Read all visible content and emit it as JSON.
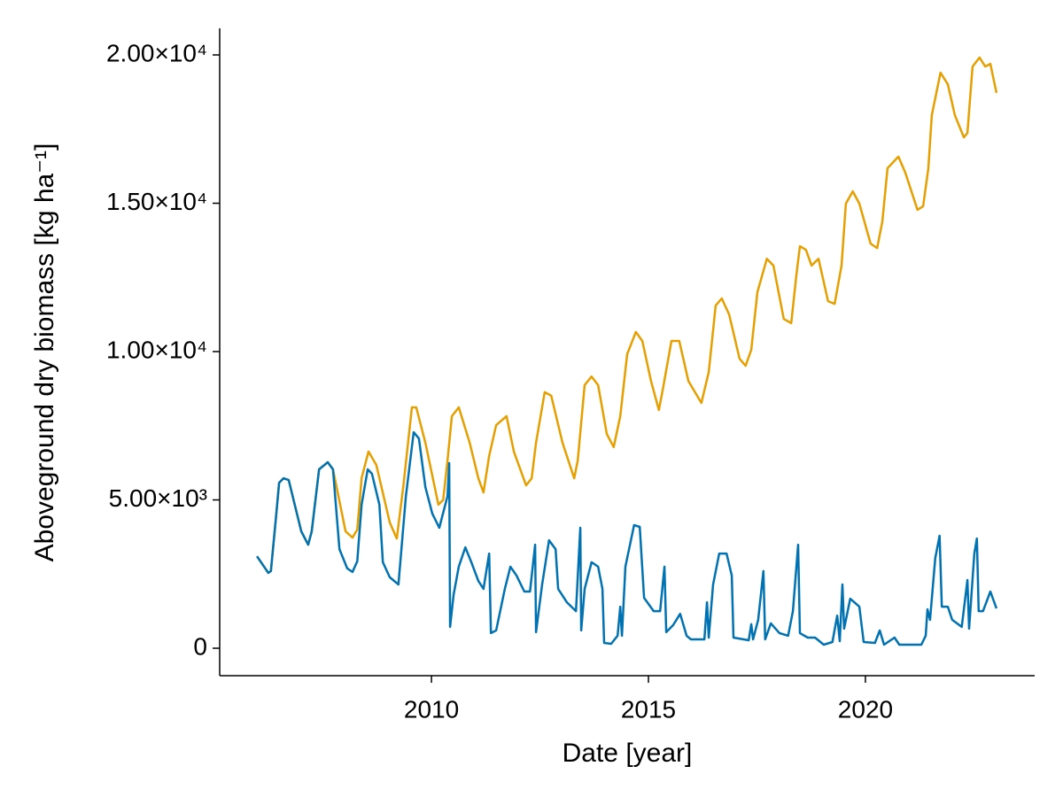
{
  "chart_data": {
    "type": "line",
    "xlabel": "Date [year]",
    "ylabel": "Aboveground dry biomass [kg ha⁻¹]",
    "xlim": [
      2005.12,
      2023.9
    ],
    "xticks": [
      2010,
      2015,
      2020
    ],
    "ylim": [
      -925,
      20896
    ],
    "yticks": [
      0,
      {
        "value": 5000,
        "label": "5.00×10³"
      },
      {
        "value": 10000,
        "label": "1.00×10⁴"
      },
      {
        "value": 15000,
        "label": "1.50×10⁴"
      },
      {
        "value": 20000,
        "label": "2.00×10⁴"
      }
    ],
    "grid": false,
    "series": [
      {
        "color": "#e69f00",
        "x": [
          2005.98,
          2006.24,
          2006.3,
          2006.41,
          2006.49,
          2006.59,
          2006.71,
          2007.0,
          2007.16,
          2007.24,
          2007.41,
          2007.61,
          2007.73,
          2008.02,
          2008.18,
          2008.29,
          2008.39,
          2008.55,
          2008.73,
          2009.04,
          2009.2,
          2009.35,
          2009.55,
          2009.65,
          2009.86,
          2010.16,
          2010.27,
          2010.37,
          2010.47,
          2010.63,
          2010.88,
          2011.08,
          2011.2,
          2011.33,
          2011.49,
          2011.73,
          2011.9,
          2012.18,
          2012.31,
          2012.41,
          2012.61,
          2012.76,
          2013.02,
          2013.29,
          2013.37,
          2013.53,
          2013.69,
          2013.84,
          2014.04,
          2014.2,
          2014.35,
          2014.51,
          2014.71,
          2014.86,
          2015.06,
          2015.24,
          2015.33,
          2015.53,
          2015.71,
          2015.92,
          2016.22,
          2016.39,
          2016.55,
          2016.69,
          2016.86,
          2017.1,
          2017.24,
          2017.37,
          2017.51,
          2017.73,
          2017.88,
          2018.12,
          2018.29,
          2018.41,
          2018.49,
          2018.63,
          2018.76,
          2018.92,
          2019.14,
          2019.29,
          2019.45,
          2019.55,
          2019.71,
          2019.86,
          2020.12,
          2020.27,
          2020.39,
          2020.51,
          2020.76,
          2020.92,
          2021.2,
          2021.33,
          2021.45,
          2021.53,
          2021.73,
          2021.9,
          2022.06,
          2022.27,
          2022.35,
          2022.47,
          2022.63,
          2022.76,
          2022.88,
          2023.02
        ],
        "values": [
          3100,
          2540,
          2600,
          4300,
          5580,
          5730,
          5670,
          3940,
          3490,
          3940,
          6030,
          6270,
          6030,
          3940,
          3730,
          4000,
          5730,
          6630,
          6180,
          4240,
          3700,
          5430,
          8120,
          8120,
          6930,
          4840,
          5000,
          6330,
          7820,
          8120,
          6930,
          5730,
          5250,
          6480,
          7520,
          7820,
          6630,
          5490,
          5730,
          6930,
          8630,
          8510,
          6930,
          5730,
          6330,
          8870,
          9160,
          8870,
          7220,
          6780,
          7820,
          9910,
          10660,
          10360,
          9010,
          8030,
          8720,
          10360,
          10360,
          9010,
          8270,
          9310,
          11550,
          11790,
          11250,
          9760,
          9520,
          10060,
          12000,
          13130,
          12900,
          11100,
          10960,
          12600,
          13550,
          13430,
          12900,
          13130,
          11700,
          11610,
          12900,
          14990,
          15400,
          14990,
          13640,
          13490,
          14390,
          16180,
          16570,
          16030,
          14780,
          14900,
          16180,
          17970,
          19400,
          19010,
          17970,
          17220,
          17370,
          19610,
          19910,
          19610,
          19700,
          18720
        ]
      },
      {
        "color": "#0072b2",
        "x": [
          2005.98,
          2006.24,
          2006.3,
          2006.41,
          2006.49,
          2006.59,
          2006.71,
          2007.0,
          2007.16,
          2007.24,
          2007.41,
          2007.61,
          2007.73,
          2007.88,
          2008.06,
          2008.18,
          2008.29,
          2008.39,
          2008.53,
          2008.63,
          2008.8,
          2008.88,
          2009.04,
          2009.24,
          2009.41,
          2009.59,
          2009.71,
          2009.86,
          2010.02,
          2010.18,
          2010.37,
          2010.41,
          2010.43,
          2010.51,
          2010.63,
          2010.78,
          2010.92,
          2011.08,
          2011.2,
          2011.33,
          2011.37,
          2011.49,
          2011.69,
          2011.82,
          2011.96,
          2012.14,
          2012.27,
          2012.39,
          2012.41,
          2012.55,
          2012.71,
          2012.86,
          2012.92,
          2013.12,
          2013.33,
          2013.43,
          2013.45,
          2013.53,
          2013.69,
          2013.84,
          2013.94,
          2013.98,
          2014.14,
          2014.29,
          2014.35,
          2014.39,
          2014.47,
          2014.67,
          2014.8,
          2014.9,
          2015.12,
          2015.27,
          2015.37,
          2015.41,
          2015.57,
          2015.73,
          2015.88,
          2015.98,
          2016.29,
          2016.35,
          2016.39,
          2016.49,
          2016.63,
          2016.8,
          2016.92,
          2016.96,
          2017.31,
          2017.37,
          2017.41,
          2017.53,
          2017.65,
          2017.69,
          2017.82,
          2018.02,
          2018.22,
          2018.33,
          2018.45,
          2018.49,
          2018.67,
          2018.84,
          2019.04,
          2019.24,
          2019.35,
          2019.41,
          2019.47,
          2019.51,
          2019.65,
          2019.86,
          2019.96,
          2020.22,
          2020.33,
          2020.43,
          2020.67,
          2020.78,
          2020.88,
          2021.29,
          2021.39,
          2021.43,
          2021.49,
          2021.61,
          2021.71,
          2021.76,
          2021.9,
          2022.0,
          2022.22,
          2022.35,
          2022.39,
          2022.51,
          2022.57,
          2022.61,
          2022.71,
          2022.88,
          2023.02
        ],
        "values": [
          3100,
          2540,
          2600,
          4300,
          5580,
          5730,
          5670,
          3940,
          3490,
          3940,
          6030,
          6270,
          6030,
          3340,
          2690,
          2570,
          2930,
          4840,
          6030,
          5880,
          4840,
          2900,
          2390,
          2150,
          5130,
          7280,
          7070,
          5430,
          4540,
          4060,
          5130,
          6240,
          720,
          1790,
          2750,
          3400,
          2900,
          2270,
          2000,
          3190,
          510,
          600,
          2000,
          2750,
          2450,
          1910,
          1910,
          3490,
          540,
          2150,
          3640,
          3340,
          2000,
          1550,
          1250,
          4060,
          600,
          2000,
          2900,
          2750,
          2000,
          180,
          150,
          420,
          1400,
          420,
          2750,
          4150,
          4090,
          1700,
          1250,
          1250,
          2750,
          540,
          780,
          1160,
          420,
          300,
          300,
          1550,
          360,
          2150,
          3190,
          3190,
          2450,
          360,
          270,
          810,
          300,
          960,
          2600,
          300,
          840,
          510,
          420,
          1250,
          3490,
          510,
          360,
          360,
          120,
          210,
          1100,
          240,
          2150,
          660,
          1670,
          1400,
          210,
          180,
          600,
          120,
          360,
          120,
          120,
          120,
          420,
          1310,
          960,
          3040,
          3790,
          1400,
          1400,
          960,
          720,
          2300,
          660,
          3190,
          3700,
          1250,
          1250,
          1910,
          1340
        ]
      }
    ]
  }
}
